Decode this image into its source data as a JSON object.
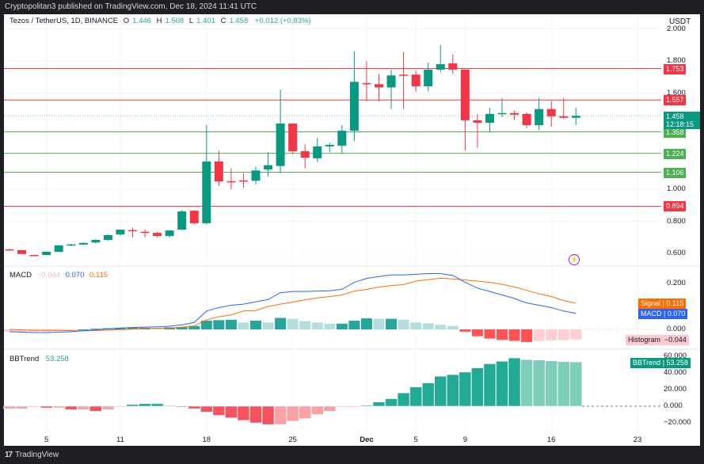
{
  "header": {
    "published": "Cryptopolitan3 published on TradingView.com, Dec 18, 2024 11:41 UTC"
  },
  "legend": {
    "symbol": "Tezos / TetherUS, 1D, BINANCE",
    "o_label": "O",
    "o": "1.446",
    "h_label": "H",
    "h": "1.508",
    "l_label": "L",
    "l": "1.401",
    "c_label": "C",
    "c": "1.458",
    "change": "+0.012 (+0.83%)"
  },
  "price_axis": {
    "currency": "USDT",
    "ticks": [
      "2.000",
      "1.800",
      "1.600",
      "1.000",
      "0.800",
      "0.600"
    ],
    "tick_values": [
      2.0,
      1.8,
      1.6,
      1.0,
      0.8,
      0.6
    ]
  },
  "levels": [
    {
      "label": "1.753",
      "value": 1.753,
      "color": "#f23645"
    },
    {
      "label": "1.557",
      "value": 1.557,
      "color": "#f23645"
    },
    {
      "label": "1.358",
      "value": 1.358,
      "color": "#4caf50"
    },
    {
      "label": "1.224",
      "value": 1.224,
      "color": "#4caf50"
    },
    {
      "label": "1.106",
      "value": 1.106,
      "color": "#4caf50"
    },
    {
      "label": "0.894",
      "value": 0.894,
      "color": "#f23645"
    }
  ],
  "last_price": {
    "value": "1.458",
    "countdown": "12:18:15",
    "color": "#089981"
  },
  "macd": {
    "title": "MACD",
    "hist_value": "−0.044",
    "macd_value": "0.070",
    "signal_value": "0.115",
    "ticks": [
      "0.200",
      "0.000"
    ],
    "tick_values": [
      0.2,
      0.0
    ],
    "signal_tag": "Signal",
    "macd_tag": "MACD",
    "hist_tag": "Histogram",
    "colors": {
      "macd": "#2962ff",
      "signal": "#ff6d00"
    }
  },
  "bbtrend": {
    "title": "BBTrend",
    "value": "53.258",
    "tag": "BBTrend",
    "ticks": [
      "60.000",
      "40.000",
      "20.000",
      "0.000",
      "−20.000"
    ],
    "tick_values": [
      60,
      40,
      20,
      0,
      -20
    ]
  },
  "x_axis": {
    "labels": [
      {
        "text": "5",
        "index": 3
      },
      {
        "text": "11",
        "index": 9
      },
      {
        "text": "18",
        "index": 16
      },
      {
        "text": "25",
        "index": 23
      },
      {
        "text": "Dec",
        "index": 29
      },
      {
        "text": "5",
        "index": 33
      },
      {
        "text": "9",
        "index": 37
      },
      {
        "text": "16",
        "index": 44
      },
      {
        "text": "23",
        "index": 51
      }
    ]
  },
  "footer": {
    "brand": "TradingView"
  },
  "chart_data": [
    {
      "type": "candlestick",
      "title": "Tezos / TetherUS, 1D, BINANCE",
      "x_start": "Nov 2",
      "x_end": "Dec 18",
      "ylim": [
        0.55,
        2.05
      ],
      "ohlc": [
        [
          0.625,
          0.63,
          0.62,
          0.622
        ],
        [
          0.62,
          0.62,
          0.595,
          0.596
        ],
        [
          0.59,
          0.592,
          0.585,
          0.588
        ],
        [
          0.59,
          0.612,
          0.588,
          0.61
        ],
        [
          0.61,
          0.652,
          0.608,
          0.65
        ],
        [
          0.655,
          0.66,
          0.645,
          0.656
        ],
        [
          0.655,
          0.668,
          0.652,
          0.665
        ],
        [
          0.668,
          0.688,
          0.662,
          0.684
        ],
        [
          0.684,
          0.72,
          0.68,
          0.714
        ],
        [
          0.718,
          0.75,
          0.71,
          0.748
        ],
        [
          0.745,
          0.76,
          0.7,
          0.74
        ],
        [
          0.735,
          0.75,
          0.7,
          0.728
        ],
        [
          0.728,
          0.735,
          0.7,
          0.708
        ],
        [
          0.708,
          0.745,
          0.7,
          0.743
        ],
        [
          0.748,
          0.87,
          0.745,
          0.862
        ],
        [
          0.866,
          0.87,
          0.78,
          0.788
        ],
        [
          0.788,
          1.4,
          0.78,
          1.173
        ],
        [
          1.173,
          1.24,
          1.02,
          1.049
        ],
        [
          1.05,
          1.13,
          1.0,
          1.048
        ],
        [
          1.055,
          1.1,
          1.01,
          1.05
        ],
        [
          1.053,
          1.14,
          1.03,
          1.117
        ],
        [
          1.123,
          1.23,
          1.08,
          1.15
        ],
        [
          1.145,
          1.62,
          1.1,
          1.41
        ],
        [
          1.41,
          1.41,
          1.22,
          1.237
        ],
        [
          1.237,
          1.28,
          1.13,
          1.197
        ],
        [
          1.193,
          1.32,
          1.17,
          1.267
        ],
        [
          1.267,
          1.29,
          1.23,
          1.277
        ],
        [
          1.272,
          1.4,
          1.22,
          1.365
        ],
        [
          1.365,
          1.86,
          1.3,
          1.67
        ],
        [
          1.662,
          1.8,
          1.55,
          1.655
        ],
        [
          1.655,
          1.72,
          1.55,
          1.635
        ],
        [
          1.635,
          1.745,
          1.5,
          1.71
        ],
        [
          1.715,
          1.855,
          1.5,
          1.713
        ],
        [
          1.715,
          1.74,
          1.61,
          1.642
        ],
        [
          1.642,
          1.79,
          1.61,
          1.746
        ],
        [
          1.746,
          1.9,
          1.73,
          1.78
        ],
        [
          1.785,
          1.84,
          1.72,
          1.746
        ],
        [
          1.746,
          1.746,
          1.24,
          1.43
        ],
        [
          1.43,
          1.47,
          1.26,
          1.415
        ],
        [
          1.415,
          1.51,
          1.36,
          1.47
        ],
        [
          1.47,
          1.57,
          1.45,
          1.475
        ],
        [
          1.475,
          1.49,
          1.43,
          1.465
        ],
        [
          1.47,
          1.48,
          1.38,
          1.4
        ],
        [
          1.4,
          1.57,
          1.37,
          1.5
        ],
        [
          1.5,
          1.55,
          1.39,
          1.455
        ],
        [
          1.455,
          1.57,
          1.44,
          1.446
        ],
        [
          1.446,
          1.508,
          1.401,
          1.458
        ]
      ]
    },
    {
      "type": "line+bar",
      "title": "MACD",
      "ylim": [
        -0.07,
        0.27
      ],
      "macd": [
        -0.01,
        -0.012,
        -0.014,
        -0.014,
        -0.012,
        -0.01,
        -0.006,
        -0.002,
        0.002,
        0.006,
        0.008,
        0.01,
        0.011,
        0.014,
        0.02,
        0.03,
        0.08,
        0.095,
        0.105,
        0.11,
        0.12,
        0.13,
        0.16,
        0.165,
        0.165,
        0.167,
        0.168,
        0.175,
        0.205,
        0.222,
        0.23,
        0.237,
        0.237,
        0.24,
        0.243,
        0.243,
        0.235,
        0.205,
        0.18,
        0.165,
        0.15,
        0.135,
        0.115,
        0.105,
        0.095,
        0.08,
        0.07
      ],
      "histogram": [
        -0.01,
        -0.01,
        -0.01,
        -0.01,
        -0.008,
        -0.004,
        0.0,
        0.003,
        0.005,
        0.007,
        0.007,
        0.007,
        0.006,
        0.009,
        0.01,
        0.015,
        0.038,
        0.04,
        0.042,
        0.03,
        0.038,
        0.03,
        0.05,
        0.046,
        0.036,
        0.03,
        0.025,
        0.025,
        0.038,
        0.048,
        0.046,
        0.046,
        0.042,
        0.03,
        0.026,
        0.02,
        0.015,
        -0.01,
        -0.03,
        -0.04,
        -0.046,
        -0.05,
        -0.055,
        -0.05,
        -0.048,
        -0.046,
        -0.044
      ]
    },
    {
      "type": "bar",
      "title": "BBTrend",
      "ylim": [
        -30,
        65
      ],
      "values": [
        -3,
        -3,
        -1,
        -2,
        -2,
        -4,
        -4,
        -6,
        -4,
        -0.5,
        2,
        3,
        3,
        1,
        -1,
        -3,
        -7,
        -11,
        -14,
        -17,
        -20,
        -22,
        -22,
        -18,
        -15,
        -10,
        -6,
        -1,
        -1,
        1,
        5,
        9,
        16,
        23,
        28,
        36,
        38,
        41,
        46,
        51,
        54,
        58,
        56,
        55.5,
        54.5,
        53.5,
        53.258
      ]
    }
  ]
}
